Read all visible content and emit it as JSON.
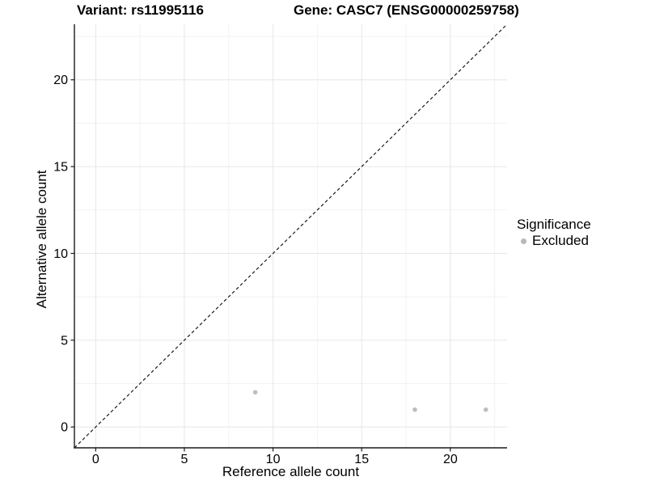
{
  "chart_data": {
    "type": "scatter",
    "title_left": "Variant: rs11995116",
    "title_right": "Gene: CASC7 (ENSG00000259758)",
    "xlabel": "Reference allele count",
    "ylabel": "Alternative allele count",
    "xlim": [
      -1.2,
      23.2
    ],
    "ylim": [
      -1.2,
      23.2
    ],
    "x_ticks": [
      0,
      5,
      10,
      15,
      20
    ],
    "y_ticks": [
      0,
      5,
      10,
      15,
      20
    ],
    "x_minor": [
      2.5,
      7.5,
      12.5,
      17.5,
      22.5
    ],
    "y_minor": [
      2.5,
      7.5,
      12.5,
      17.5,
      22.5
    ],
    "grid": true,
    "legend_position": "right",
    "identity_line": {
      "style": "dashed",
      "color": "#1a1a1a",
      "x1": -1.2,
      "y1": -1.2,
      "x2": 23.2,
      "y2": 23.2
    },
    "series": [
      {
        "name": "Excluded",
        "color": "#bebebe",
        "points": [
          {
            "x": 9,
            "y": 2
          },
          {
            "x": 18,
            "y": 1
          },
          {
            "x": 22,
            "y": 1
          }
        ]
      }
    ],
    "legend": {
      "title": "Significance",
      "items": [
        {
          "label": "Excluded",
          "color": "#b8b8b8"
        }
      ]
    },
    "colors": {
      "major_grid": "#e6e6e6",
      "minor_grid": "#f2f2f2",
      "axis_line": "#1a1a1a",
      "tick_label": "#000000",
      "point": "#bebebe"
    }
  }
}
